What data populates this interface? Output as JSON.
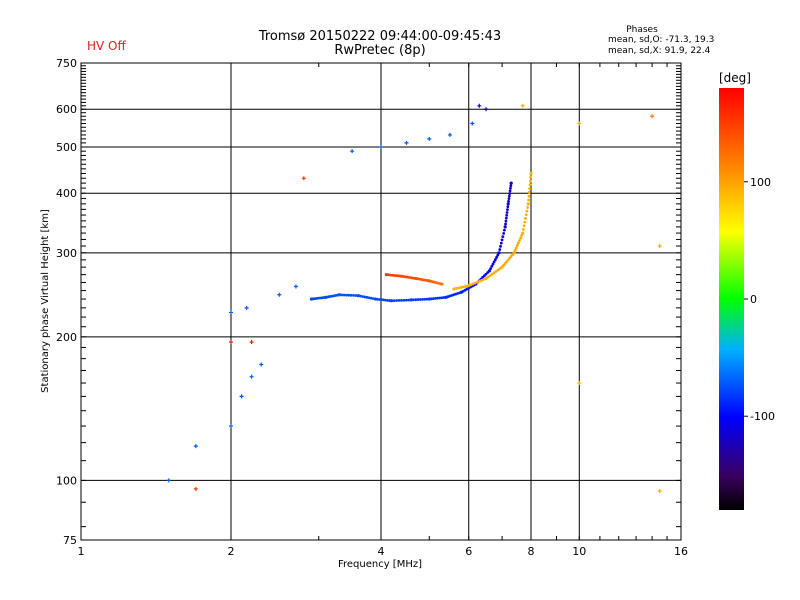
{
  "chart_data": {
    "type": "scatter",
    "title": "Tromsø 20150222 09:44:00-09:45:43",
    "subtitle": "RwPretec (8p)",
    "status": "HV Off",
    "status_color": "#e02020",
    "xlabel": "Frequency [MHz]",
    "ylabel": "Stationary phase Virtual Height [km]",
    "x_scale": "log",
    "y_scale": "log",
    "xlim": [
      1,
      16
    ],
    "ylim": [
      75,
      750
    ],
    "x_ticks": [
      1,
      2,
      4,
      6,
      8,
      10,
      16
    ],
    "x_tick_labels": [
      "1",
      "2",
      "4",
      "6",
      "8",
      "10",
      "16"
    ],
    "y_ticks": [
      75,
      100,
      200,
      300,
      400,
      500,
      600,
      750
    ],
    "y_tick_labels": [
      "75",
      "100",
      "200",
      "300",
      "400",
      "500",
      "600",
      "750"
    ],
    "grid": true,
    "stats": {
      "title": "Phases",
      "line1": "mean, sd,O: -71.3, 19.3",
      "line2": "mean, sd,X:  91.9, 22.4"
    },
    "colorbar": {
      "label": "[deg]",
      "range": [
        -180,
        180
      ],
      "ticks": [
        100,
        0,
        -100
      ],
      "tick_labels": [
        "100",
        "0",
        "-100"
      ]
    },
    "series": [
      {
        "traces": [
          {
            "x": 2.9,
            "y": 240,
            "phase": -78
          },
          {
            "x": 3.1,
            "y": 242,
            "phase": -75
          },
          {
            "x": 3.3,
            "y": 245,
            "phase": -73
          },
          {
            "x": 3.6,
            "y": 244,
            "phase": -74
          },
          {
            "x": 3.9,
            "y": 240,
            "phase": -76
          },
          {
            "x": 4.2,
            "y": 238,
            "phase": -78
          },
          {
            "x": 4.6,
            "y": 239,
            "phase": -80
          },
          {
            "x": 5.0,
            "y": 240,
            "phase": -83
          },
          {
            "x": 5.4,
            "y": 242,
            "phase": -86
          },
          {
            "x": 5.8,
            "y": 248,
            "phase": -90
          },
          {
            "x": 6.2,
            "y": 258,
            "phase": -96
          },
          {
            "x": 6.6,
            "y": 275,
            "phase": -103
          },
          {
            "x": 6.9,
            "y": 300,
            "phase": -110
          },
          {
            "x": 7.1,
            "y": 340,
            "phase": -115
          },
          {
            "x": 7.2,
            "y": 380,
            "phase": -118
          },
          {
            "x": 7.3,
            "y": 420,
            "phase": -120
          }
        ],
        "scatter": [
          {
            "x": 1.5,
            "y": 100,
            "phase": -70
          },
          {
            "x": 1.7,
            "y": 118,
            "phase": -72
          },
          {
            "x": 2.0,
            "y": 130,
            "phase": -70
          },
          {
            "x": 2.1,
            "y": 150,
            "phase": -73
          },
          {
            "x": 2.2,
            "y": 165,
            "phase": -71
          },
          {
            "x": 2.3,
            "y": 175,
            "phase": -70
          },
          {
            "x": 2.0,
            "y": 225,
            "phase": -70
          },
          {
            "x": 2.15,
            "y": 230,
            "phase": -70
          },
          {
            "x": 2.5,
            "y": 245,
            "phase": -71
          },
          {
            "x": 2.7,
            "y": 255,
            "phase": -70
          },
          {
            "x": 3.5,
            "y": 490,
            "phase": -72
          },
          {
            "x": 4.0,
            "y": 500,
            "phase": -71
          },
          {
            "x": 4.5,
            "y": 510,
            "phase": -72
          },
          {
            "x": 5.0,
            "y": 520,
            "phase": -71
          },
          {
            "x": 5.5,
            "y": 530,
            "phase": -73
          },
          {
            "x": 6.3,
            "y": 610,
            "phase": -110
          },
          {
            "x": 6.5,
            "y": 600,
            "phase": -120
          },
          {
            "x": 6.1,
            "y": 560,
            "phase": -72
          }
        ]
      },
      {
        "traces": [
          {
            "x": 5.6,
            "y": 252,
            "phase": 90
          },
          {
            "x": 6.0,
            "y": 256,
            "phase": 92
          },
          {
            "x": 6.5,
            "y": 265,
            "phase": 95
          },
          {
            "x": 7.0,
            "y": 280,
            "phase": 96
          },
          {
            "x": 7.4,
            "y": 300,
            "phase": 97
          },
          {
            "x": 7.7,
            "y": 330,
            "phase": 95
          },
          {
            "x": 7.9,
            "y": 380,
            "phase": 93
          },
          {
            "x": 8.0,
            "y": 440,
            "phase": 92
          },
          {
            "x": 4.1,
            "y": 270,
            "phase": 150
          },
          {
            "x": 4.4,
            "y": 268,
            "phase": 145
          },
          {
            "x": 4.7,
            "y": 265,
            "phase": 140
          },
          {
            "x": 5.0,
            "y": 262,
            "phase": 135
          },
          {
            "x": 5.3,
            "y": 258,
            "phase": 120
          }
        ],
        "scatter": [
          {
            "x": 7.7,
            "y": 610,
            "phase": 95
          },
          {
            "x": 10.0,
            "y": 560,
            "phase": 90
          },
          {
            "x": 14.0,
            "y": 580,
            "phase": 120
          },
          {
            "x": 10.0,
            "y": 160,
            "phase": 90
          },
          {
            "x": 14.5,
            "y": 95,
            "phase": 95
          },
          {
            "x": 14.5,
            "y": 310,
            "phase": 95
          },
          {
            "x": 2.8,
            "y": 430,
            "phase": 150
          },
          {
            "x": 1.7,
            "y": 96,
            "phase": 150
          },
          {
            "x": 2.0,
            "y": 195,
            "phase": 170
          },
          {
            "x": 2.2,
            "y": 195,
            "phase": 170
          }
        ]
      }
    ]
  }
}
